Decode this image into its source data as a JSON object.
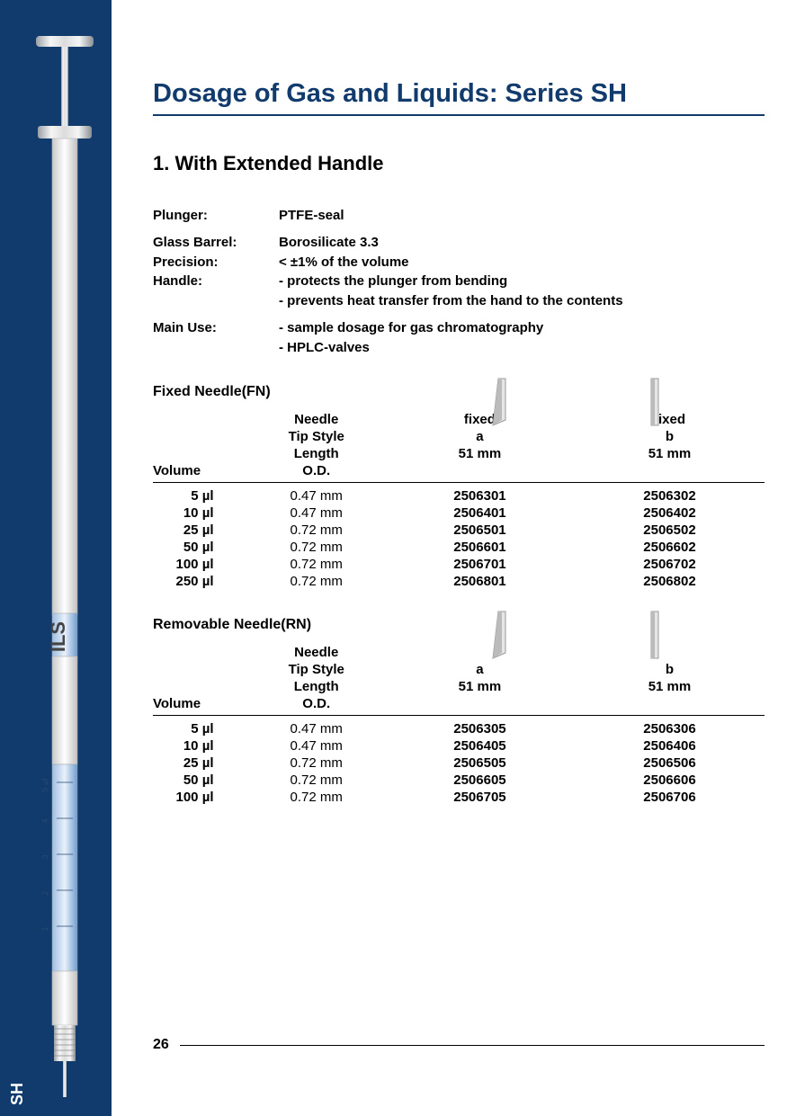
{
  "sidebar_label": "SH",
  "syringe": {
    "brand": "ILS",
    "scale_labels": [
      "1",
      "2",
      "3",
      "4",
      "5 µl"
    ]
  },
  "title": "Dosage of Gas and Liquids: Series SH",
  "section_heading": "1. With Extended Handle",
  "specs": {
    "plunger_label": "Plunger:",
    "plunger_value": "PTFE-seal",
    "glass_label": "Glass Barrel:",
    "glass_value": "Borosilicate 3.3",
    "precision_label": "Precision:",
    "precision_value": "< ±1% of the volume",
    "handle_label": "Handle:",
    "handle_value1": "- protects the plunger from bending",
    "handle_value2": "- prevents heat transfer from the hand to the contents",
    "mainuse_label": "Main Use:",
    "mainuse_value1": "- sample dosage for gas chromatography",
    "mainuse_value2": "- HPLC-valves"
  },
  "fn": {
    "heading": "Fixed Needle(FN)",
    "header": {
      "needle": "Needle",
      "tipstyle": "Tip Style",
      "length": "Length",
      "volume": "Volume",
      "od": "O.D.",
      "fixed_a": "fixed",
      "a": "a",
      "len_a": "51 mm",
      "fixed_b": "fixed",
      "b": "b",
      "len_b": "51 mm"
    },
    "rows": [
      {
        "vol": "5 µl",
        "od": "0.47 mm",
        "a": "2506301",
        "b": "2506302"
      },
      {
        "vol": "10 µl",
        "od": "0.47 mm",
        "a": "2506401",
        "b": "2506402"
      },
      {
        "vol": "25 µl",
        "od": "0.72 mm",
        "a": "2506501",
        "b": "2506502"
      },
      {
        "vol": "50 µl",
        "od": "0.72 mm",
        "a": "2506601",
        "b": "2506602"
      },
      {
        "vol": "100 µl",
        "od": "0.72 mm",
        "a": "2506701",
        "b": "2506702"
      },
      {
        "vol": "250 µl",
        "od": "0.72 mm",
        "a": "2506801",
        "b": "2506802"
      }
    ]
  },
  "rn": {
    "heading": "Removable Needle(RN)",
    "header": {
      "needle": "Needle",
      "tipstyle": "Tip Style",
      "length": "Length",
      "volume": "Volume",
      "od": "O.D.",
      "a": "a",
      "len_a": "51 mm",
      "b": "b",
      "len_b": "51 mm"
    },
    "rows": [
      {
        "vol": "5 µl",
        "od": "0.47 mm",
        "a": "2506305",
        "b": "2506306"
      },
      {
        "vol": "10 µl",
        "od": "0.47 mm",
        "a": "2506405",
        "b": "2506406"
      },
      {
        "vol": "25 µl",
        "od": "0.72 mm",
        "a": "2506505",
        "b": "2506506"
      },
      {
        "vol": "50 µl",
        "od": "0.72 mm",
        "a": "2506605",
        "b": "2506606"
      },
      {
        "vol": "100 µl",
        "od": "0.72 mm",
        "a": "2506705",
        "b": "2506706"
      }
    ]
  },
  "page_number": "26",
  "colors": {
    "brand": "#113a6d",
    "text": "#000000",
    "bg": "#ffffff",
    "steel1": "#e8e8e8",
    "steel2": "#bdbdbd",
    "glass": "#cfe2f3"
  }
}
